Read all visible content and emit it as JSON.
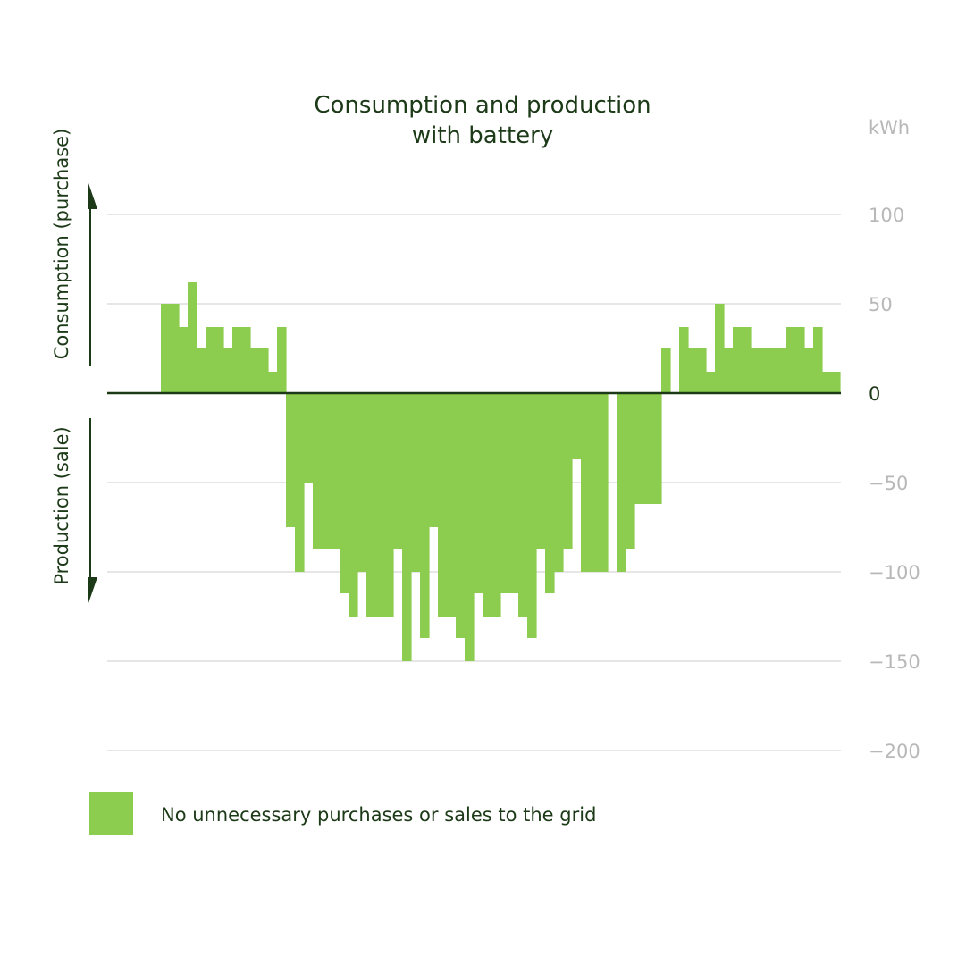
{
  "colors": {
    "bar": "#8ccd4f",
    "text": "#1c3a17",
    "grid": "#dddddd",
    "tick": "#b8b8b8"
  },
  "chart_data": {
    "type": "bar",
    "title": [
      "Consumption and production",
      "with battery"
    ],
    "unit": "kWh",
    "yticks": [
      100,
      50,
      0,
      -50,
      -100,
      -150,
      -200
    ],
    "ytick_labels": [
      "100",
      "50",
      "0",
      "−50",
      "−100",
      "−150",
      "−200"
    ],
    "ylim": [
      -200,
      100
    ],
    "upper_axis_label": "Consumption (purchase)",
    "lower_axis_label": "Production (sale)",
    "legend": [
      {
        "name": "No unnecessary purchases or sales to the grid"
      }
    ],
    "grid": true,
    "x_count": 96,
    "series": [
      {
        "name": "No unnecessary purchases or sales to the grid",
        "values": [
          0,
          0,
          0,
          50,
          50,
          37,
          62,
          25,
          37,
          37,
          25,
          37,
          37,
          25,
          25,
          12,
          37,
          -75,
          -100,
          -50,
          -87,
          -87,
          -87,
          -112,
          -125,
          -100,
          -125,
          -125,
          -125,
          -87,
          -150,
          -100,
          -137,
          -75,
          -125,
          -125,
          -137,
          -150,
          -112,
          -125,
          -125,
          -112,
          -112,
          -125,
          -137,
          -87,
          -112,
          -100,
          -87,
          -37,
          -100,
          -100,
          -100,
          0,
          -100,
          -87,
          -62,
          -62,
          -62,
          25,
          0,
          37,
          25,
          25,
          12,
          50,
          25,
          37,
          37,
          25,
          25,
          25,
          25,
          37,
          37,
          25,
          37,
          12,
          12
        ]
      }
    ]
  }
}
